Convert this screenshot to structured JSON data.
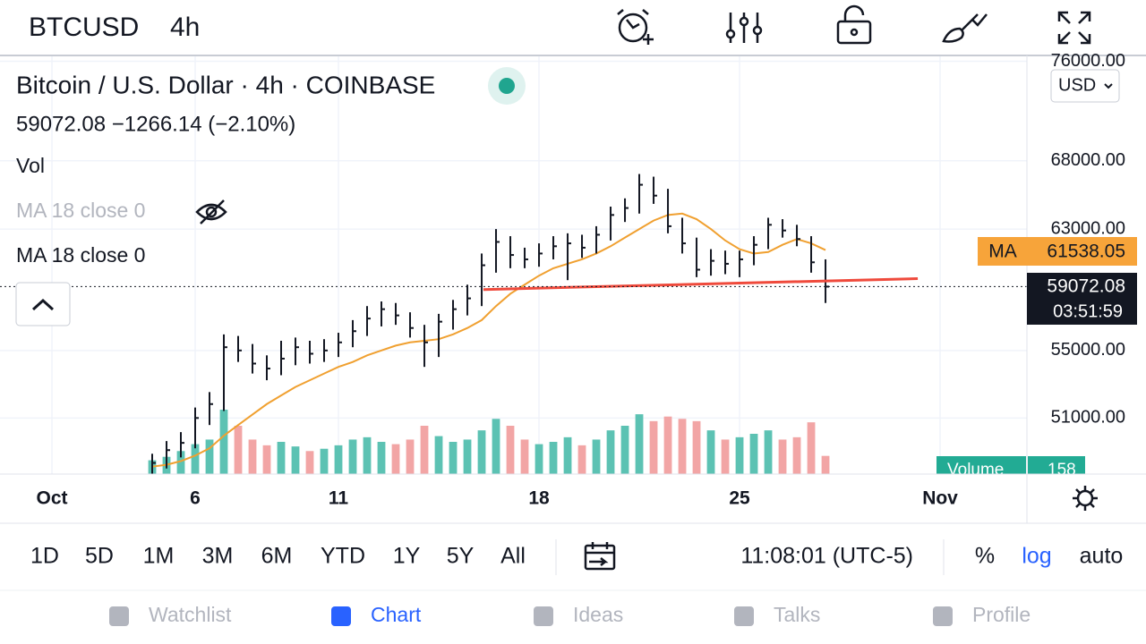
{
  "header": {
    "symbol": "BTCUSD",
    "interval": "4h"
  },
  "legend": {
    "title": "Bitcoin / U.S. Dollar · 4h · COINBASE",
    "quote": "59072.08  −1266.14 (−2.10%)",
    "vol": "Vol",
    "ma_hidden": "MA 18 close 0",
    "ma_visible": "MA 18 close 0"
  },
  "currency": "USD",
  "badges": {
    "ma_label": "MA",
    "ma_value": "61538.05",
    "price": "59072.08",
    "countdown": "03:51:59",
    "volume_label": "Volume",
    "volume_value": "158"
  },
  "chart_data": {
    "type": "ohlc",
    "log_scale": true,
    "grid": true,
    "x": [
      3.5,
      4,
      4.5,
      5,
      5.5,
      6,
      6.5,
      7,
      7.5,
      8,
      8.5,
      9,
      9.5,
      10,
      10.5,
      11,
      11.5,
      12,
      12.5,
      13,
      13.5,
      14,
      14.5,
      15,
      15.5,
      16,
      16.5,
      17,
      17.5,
      18,
      18.5,
      19,
      19.5,
      20,
      20.5,
      21,
      21.5,
      22,
      22.5,
      23,
      23.5,
      24,
      24.5,
      25,
      25.5,
      26,
      26.5,
      27
    ],
    "high": [
      49000,
      49700,
      50200,
      51600,
      52500,
      56000,
      55900,
      55400,
      54700,
      55600,
      55800,
      55600,
      55700,
      56100,
      56900,
      57800,
      58100,
      58000,
      57400,
      56600,
      57300,
      58200,
      59200,
      61300,
      63000,
      62500,
      61700,
      62000,
      62500,
      62700,
      62600,
      63200,
      64600,
      65200,
      67000,
      66800,
      65900,
      63800,
      62400,
      61600,
      61500,
      61500,
      62500,
      63800,
      63700,
      63300,
      62500,
      60900
    ],
    "low": [
      47600,
      48200,
      48800,
      49300,
      50600,
      51400,
      54300,
      53600,
      53200,
      53500,
      54100,
      54200,
      54300,
      54600,
      55200,
      55900,
      56500,
      56600,
      55800,
      54000,
      54600,
      56300,
      57200,
      57800,
      60000,
      60300,
      60300,
      60400,
      60900,
      59500,
      61000,
      61300,
      62200,
      63500,
      64100,
      64800,
      62700,
      61300,
      59700,
      59800,
      59900,
      59700,
      60500,
      61600,
      62400,
      61800,
      60000,
      58000
    ],
    "close": [
      48500,
      49200,
      49600,
      51000,
      51800,
      55200,
      55000,
      54200,
      53900,
      54500,
      55200,
      54800,
      55000,
      55500,
      56200,
      57000,
      57600,
      57200,
      56400,
      55500,
      56800,
      57600,
      58300,
      60500,
      62100,
      61200,
      60900,
      61300,
      61800,
      62000,
      61700,
      62600,
      64000,
      64500,
      66200,
      65400,
      63200,
      62000,
      60200,
      60800,
      60600,
      60900,
      61900,
      63300,
      62900,
      62300,
      60700,
      59072
    ],
    "ma_values": [
      48300,
      48400,
      48600,
      48900,
      49300,
      50000,
      50600,
      51200,
      51800,
      52300,
      52800,
      53200,
      53600,
      54000,
      54300,
      54700,
      55000,
      55300,
      55500,
      55600,
      55700,
      56000,
      56400,
      56900,
      57800,
      58600,
      59200,
      59800,
      60300,
      60600,
      60900,
      61300,
      61800,
      62400,
      63000,
      63600,
      64000,
      64100,
      63700,
      63000,
      62200,
      61600,
      61300,
      61400,
      61900,
      62300,
      62000,
      61538.05
    ],
    "volume": [
      120,
      150,
      200,
      260,
      300,
      560,
      420,
      300,
      250,
      280,
      240,
      200,
      220,
      250,
      300,
      320,
      280,
      260,
      300,
      420,
      330,
      280,
      300,
      380,
      480,
      420,
      300,
      260,
      280,
      320,
      250,
      300,
      380,
      420,
      520,
      460,
      500,
      480,
      460,
      380,
      300,
      320,
      350,
      380,
      300,
      320,
      450,
      158
    ],
    "volume_lim": [
      0,
      700
    ],
    "bar_color": "#131722",
    "ma_color": "#f0a030",
    "up_color": "#5cc2b3",
    "down_color": "#f2a5a5",
    "trendline": {
      "x": [
        15.06,
        30.22
      ],
      "values": [
        58880,
        59600
      ],
      "color": "#ef4a3c"
    },
    "last_price": 59072.08,
    "xlim": [
      -1.8125,
      34.03
    ],
    "xticks": [
      {
        "value": 0,
        "label": "Oct"
      },
      {
        "value": 5,
        "label": "6"
      },
      {
        "value": 10,
        "label": "11"
      },
      {
        "value": 17,
        "label": "18"
      },
      {
        "value": 24,
        "label": "25"
      },
      {
        "value": 31,
        "label": "Nov"
      }
    ],
    "ylim": [
      47900,
      76500
    ],
    "yticks": [
      {
        "value": 76000,
        "label": "76000.00"
      },
      {
        "value": 68000,
        "label": "68000.00"
      },
      {
        "value": 63000,
        "label": "63000.00"
      },
      {
        "value": 55000,
        "label": "55000.00"
      },
      {
        "value": 51000,
        "label": "51000.00"
      }
    ]
  },
  "toolbar": {
    "ranges": [
      "1D",
      "5D",
      "1M",
      "3M",
      "6M",
      "YTD",
      "1Y",
      "5Y",
      "All"
    ],
    "time": "11:08:01 (UTC-5)",
    "percent": "%",
    "log": "log",
    "auto": "auto"
  },
  "nav": [
    "Watchlist",
    "Chart",
    "Ideas",
    "Talks",
    "Profile"
  ]
}
